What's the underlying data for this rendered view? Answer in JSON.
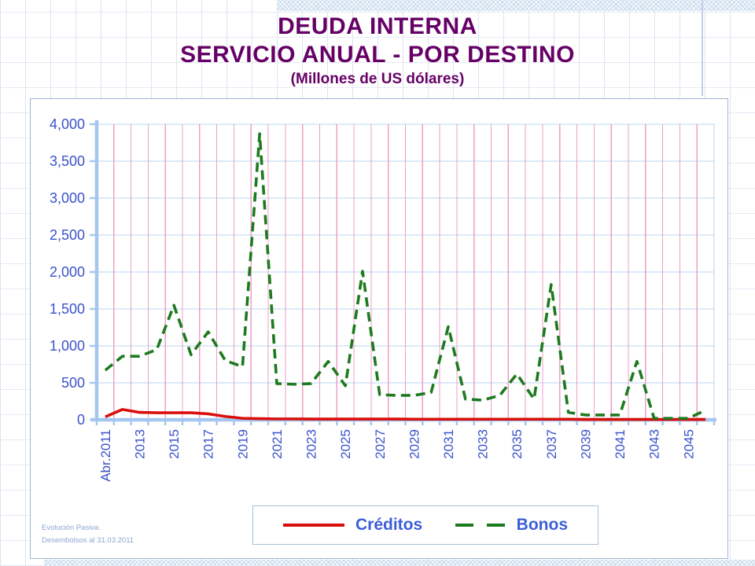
{
  "slide": {
    "title_line1": "DEUDA INTERNA",
    "title_line2": "SERVICIO ANUAL - POR DESTINO",
    "title_line3": "(Millones de US dólares)",
    "footnote_line1": "Evolución Pasiva.",
    "footnote_line2": "Desembolsos al 31.03.2011"
  },
  "colors": {
    "title_text": "#660066",
    "axis_line": "#a5c6ef",
    "grid_horizontal": "#b8d4f0",
    "grid_vertical": "#ec9fc8",
    "axis_text": "#3b52cc",
    "legend_text": "#3c5ed8",
    "creditos_line": "#d90f0c",
    "bonos_line": "#1e7a1e"
  },
  "chart_data": {
    "type": "line",
    "title": "DEUDA INTERNA - SERVICIO ANUAL - POR DESTINO (Millones de US dólares)",
    "categories": [
      "Abr.2011",
      "2012",
      "2013",
      "2014",
      "2015",
      "2016",
      "2017",
      "2018",
      "2019",
      "2020",
      "2021",
      "2022",
      "2023",
      "2024",
      "2025",
      "2026",
      "2027",
      "2028",
      "2029",
      "2030",
      "2031",
      "2032",
      "2033",
      "2034",
      "2035",
      "2036",
      "2037",
      "2038",
      "2039",
      "2040",
      "2041",
      "2042",
      "2043",
      "2044",
      "2045",
      "2046"
    ],
    "x_tick_labels": [
      "Abr.2011",
      "2013",
      "2015",
      "2017",
      "2019",
      "2021",
      "2023",
      "2025",
      "2027",
      "2029",
      "2031",
      "2033",
      "2035",
      "2037",
      "2039",
      "2041",
      "2043",
      "2045"
    ],
    "series": [
      {
        "name": "Créditos",
        "color": "#d90f0c",
        "style": "solid",
        "values": [
          40,
          140,
          100,
          95,
          95,
          95,
          80,
          45,
          20,
          15,
          12,
          12,
          10,
          10,
          10,
          10,
          10,
          10,
          8,
          8,
          8,
          8,
          8,
          8,
          8,
          8,
          8,
          8,
          5,
          5,
          5,
          5,
          5,
          5,
          5,
          5
        ]
      },
      {
        "name": "Bonos",
        "color": "#1e7a1e",
        "style": "dashed",
        "values": [
          670,
          860,
          860,
          950,
          1550,
          880,
          1190,
          800,
          720,
          3870,
          490,
          480,
          490,
          790,
          460,
          2010,
          340,
          330,
          330,
          370,
          1260,
          280,
          265,
          330,
          620,
          280,
          1830,
          100,
          65,
          65,
          65,
          790,
          20,
          20,
          20,
          130
        ]
      }
    ],
    "ylim": [
      0,
      4000
    ],
    "ytick_step": 500,
    "grid": "horizontal-and-vertical",
    "legend_position": "bottom"
  }
}
